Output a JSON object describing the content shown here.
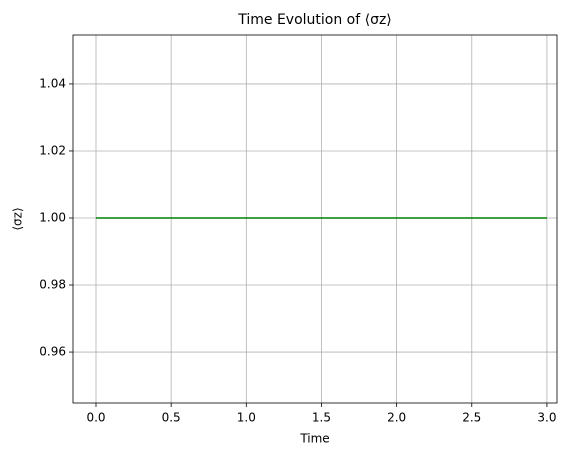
{
  "chart_data": {
    "type": "line",
    "title": "Time Evolution of ⟨σz⟩",
    "x_label": "Time",
    "y_label": "⟨σz⟩",
    "x": [
      0,
      3
    ],
    "series": [
      {
        "values": [
          1,
          1
        ],
        "color": "#008000"
      }
    ],
    "xlim": [
      -0.153,
      3.067
    ],
    "ylim": [
      0.9448,
      1.0546
    ],
    "xticks": [
      {
        "value": 0,
        "label": "0.0"
      },
      {
        "value": 0.5,
        "label": "0.5"
      },
      {
        "value": 1,
        "label": "1.0"
      },
      {
        "value": 1.5,
        "label": "1.5"
      },
      {
        "value": 2,
        "label": "2.0"
      },
      {
        "value": 2.5,
        "label": "2.5"
      },
      {
        "value": 3,
        "label": "3.0"
      }
    ],
    "yticks": [
      0.96,
      0.98,
      {
        "value": 1,
        "label": "1.00"
      },
      1.02,
      1.04
    ],
    "grid": true
  }
}
